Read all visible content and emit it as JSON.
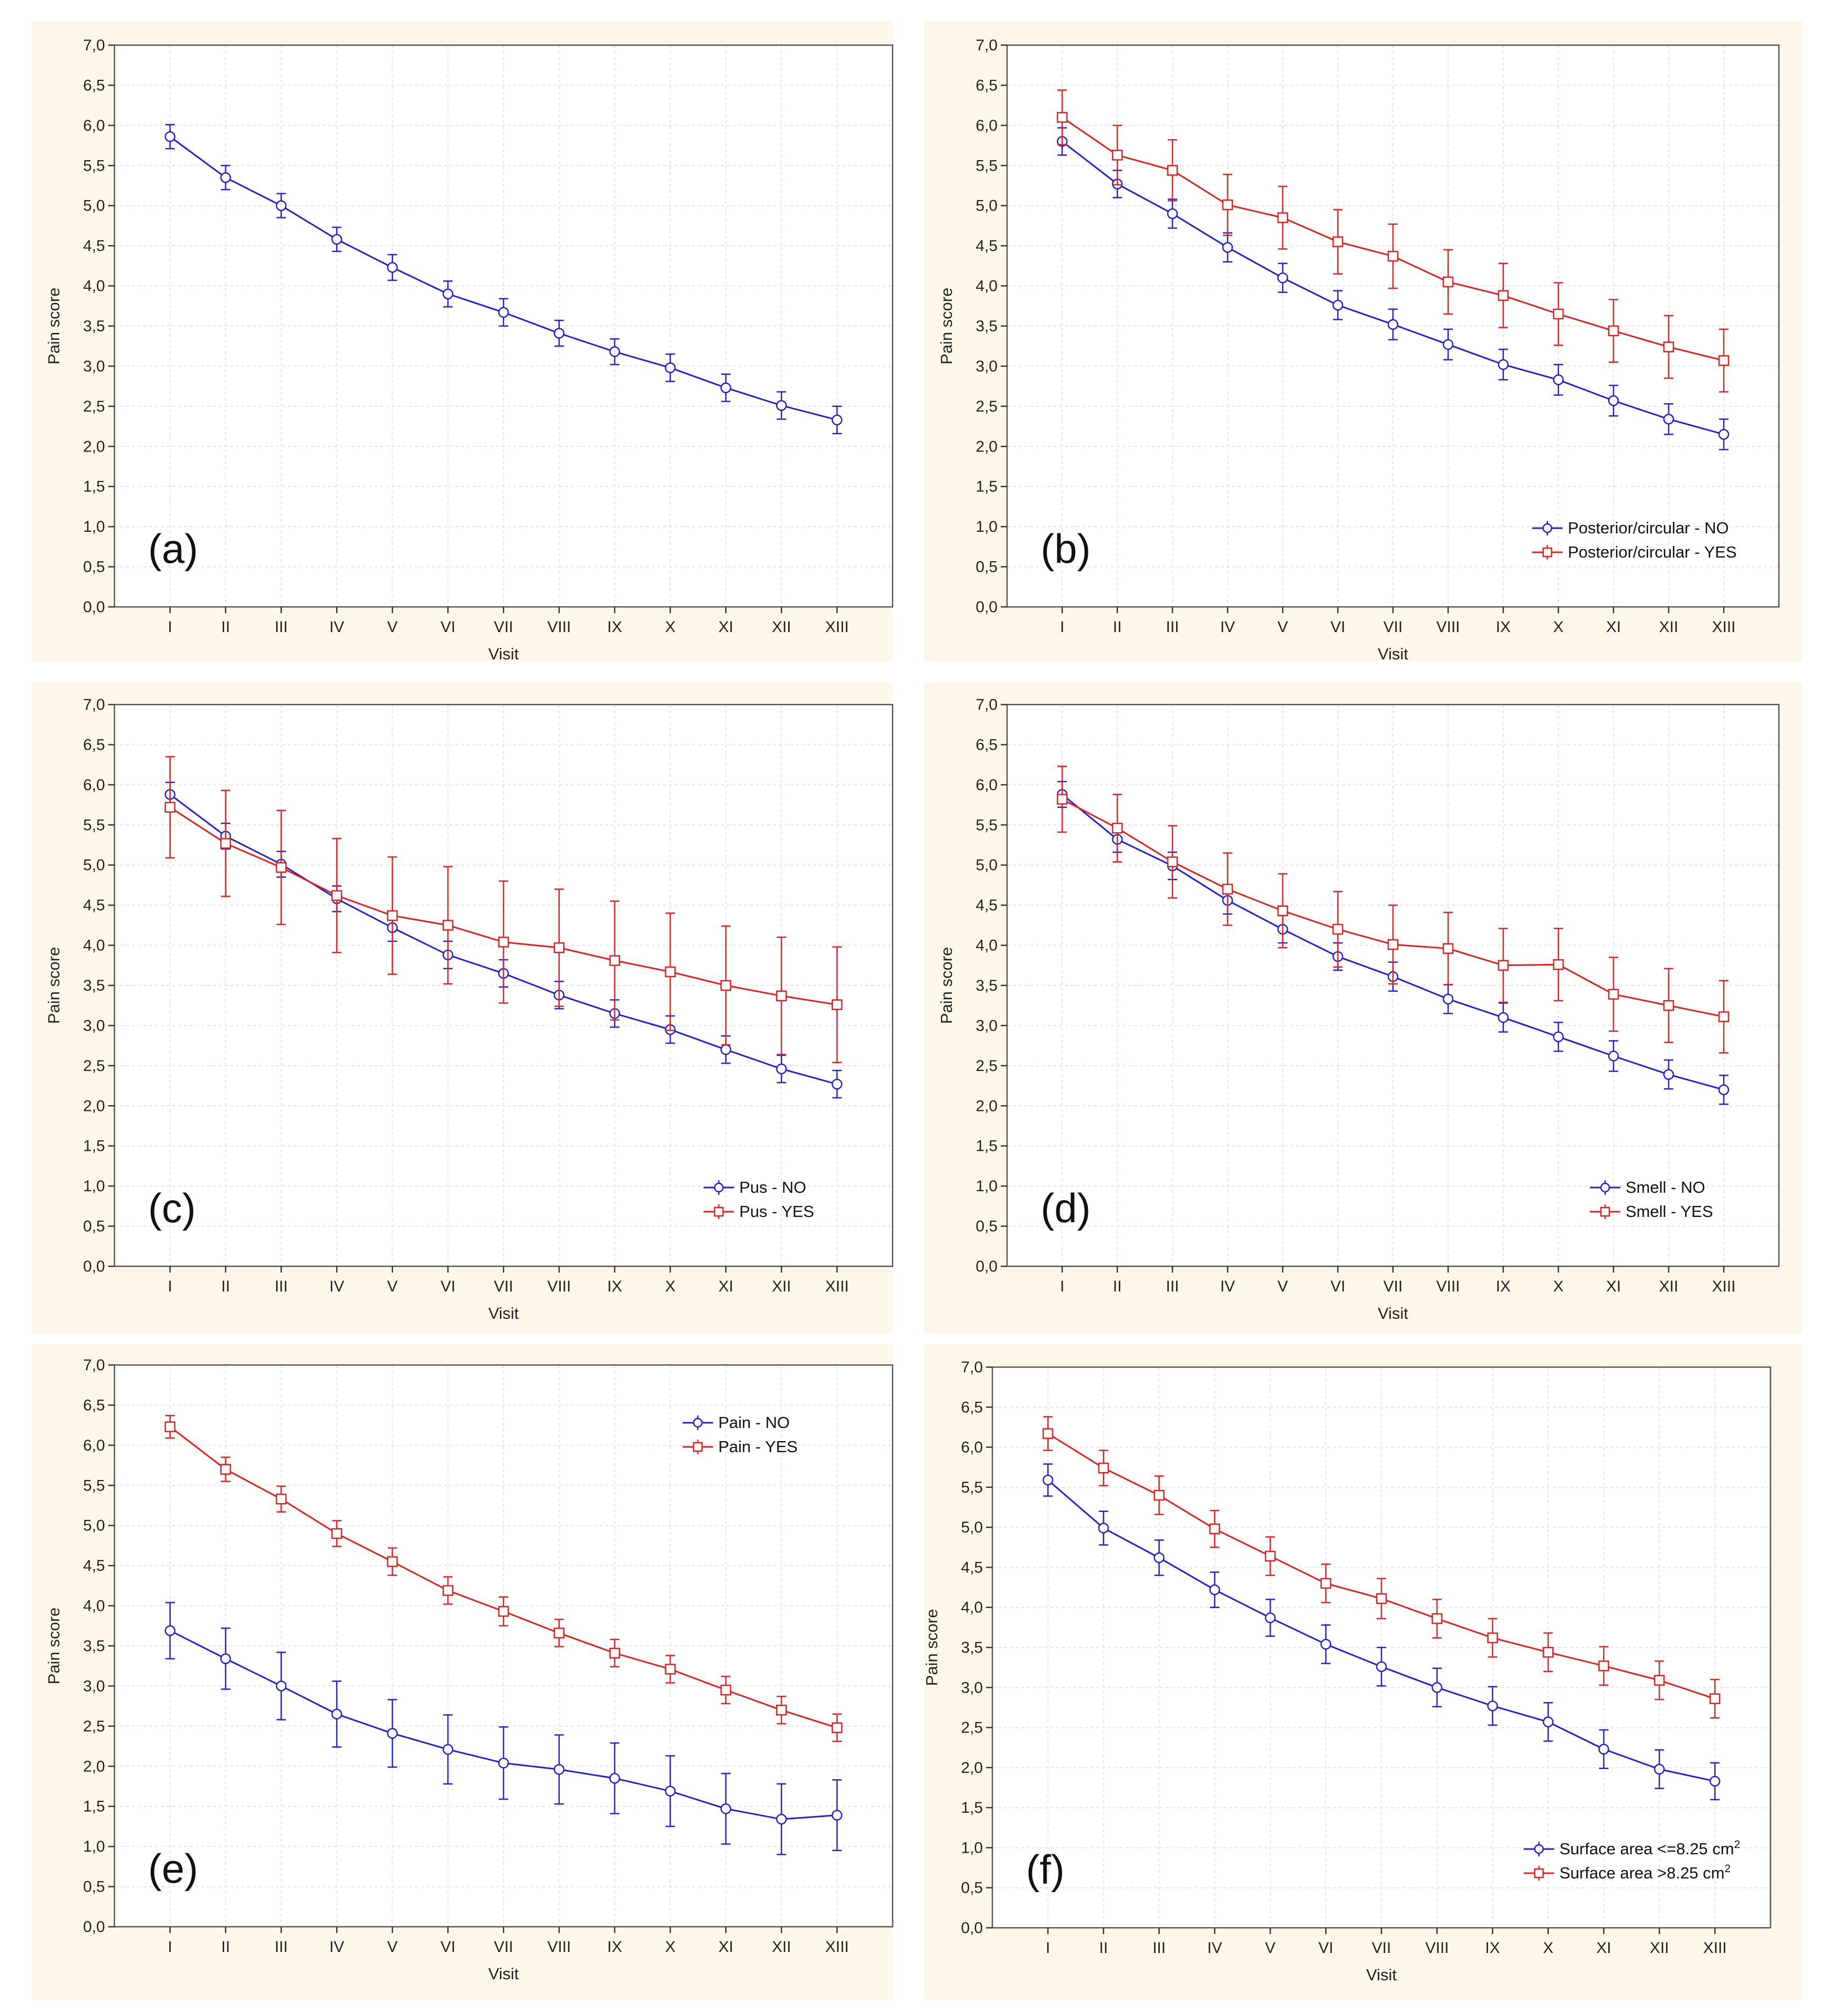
{
  "chart_data": [
    {
      "id": "a",
      "type": "line",
      "panel_label": "(a)",
      "xlabel": "Visit",
      "ylabel": "Pain score",
      "ylim": [
        0,
        7
      ],
      "ytick_labels": [
        "0,0",
        "0,5",
        "1,0",
        "1,5",
        "2,0",
        "2,5",
        "3,0",
        "3,5",
        "4,0",
        "4,5",
        "5,0",
        "5,5",
        "6,0",
        "6,5",
        "7,0"
      ],
      "categories": [
        "I",
        "II",
        "III",
        "IV",
        "V",
        "VI",
        "VII",
        "VIII",
        "IX",
        "X",
        "XI",
        "XII",
        "XIII"
      ],
      "legend_position": "none",
      "series": [
        {
          "name": "",
          "color": "#1f1fd6",
          "marker": "circle",
          "values": [
            5.86,
            5.35,
            5.0,
            4.58,
            4.23,
            3.9,
            3.67,
            3.41,
            3.18,
            2.98,
            2.73,
            2.51,
            2.33
          ],
          "errors": [
            0.15,
            0.15,
            0.15,
            0.15,
            0.16,
            0.16,
            0.17,
            0.16,
            0.16,
            0.17,
            0.17,
            0.17,
            0.17
          ]
        }
      ]
    },
    {
      "id": "b",
      "type": "line",
      "panel_label": "(b)",
      "xlabel": "Visit",
      "ylabel": "Pain score",
      "ylim": [
        0,
        7
      ],
      "ytick_labels": [
        "0,0",
        "0,5",
        "1,0",
        "1,5",
        "2,0",
        "2,5",
        "3,0",
        "3,5",
        "4,0",
        "4,5",
        "5,0",
        "5,5",
        "6,0",
        "6,5",
        "7,0"
      ],
      "categories": [
        "I",
        "II",
        "III",
        "IV",
        "V",
        "VI",
        "VII",
        "VIII",
        "IX",
        "X",
        "XI",
        "XII",
        "XIII"
      ],
      "legend_position": "bottom-right",
      "series": [
        {
          "name": "Posterior/circular - NO",
          "color": "#1f1fd6",
          "marker": "circle",
          "values": [
            5.8,
            5.27,
            4.9,
            4.48,
            4.1,
            3.76,
            3.52,
            3.27,
            3.02,
            2.83,
            2.57,
            2.34,
            2.15
          ],
          "errors": [
            0.17,
            0.17,
            0.18,
            0.18,
            0.18,
            0.18,
            0.19,
            0.19,
            0.19,
            0.19,
            0.19,
            0.19,
            0.19
          ]
        },
        {
          "name": "Posterior/circular - YES",
          "color": "#e0201e",
          "marker": "square",
          "values": [
            6.1,
            5.63,
            5.44,
            5.01,
            4.85,
            4.55,
            4.37,
            4.05,
            3.88,
            3.65,
            3.44,
            3.24,
            3.07
          ],
          "errors": [
            0.34,
            0.37,
            0.38,
            0.38,
            0.39,
            0.4,
            0.4,
            0.4,
            0.4,
            0.39,
            0.39,
            0.39,
            0.39
          ]
        }
      ]
    },
    {
      "id": "c",
      "type": "line",
      "panel_label": "(c)",
      "xlabel": "Visit",
      "ylabel": "Pain score",
      "ylim": [
        0,
        7
      ],
      "ytick_labels": [
        "0,0",
        "0,5",
        "1,0",
        "1,5",
        "2,0",
        "2,5",
        "3,0",
        "3,5",
        "4,0",
        "4,5",
        "5,0",
        "5,5",
        "6,0",
        "6,5",
        "7,0"
      ],
      "categories": [
        "I",
        "II",
        "III",
        "IV",
        "V",
        "VI",
        "VII",
        "VIII",
        "IX",
        "X",
        "XI",
        "XII",
        "XIII"
      ],
      "legend_position": "bottom-right",
      "series": [
        {
          "name": "Pus - NO",
          "color": "#1f1fd6",
          "marker": "circle",
          "values": [
            5.88,
            5.36,
            5.01,
            4.58,
            4.22,
            3.88,
            3.65,
            3.38,
            3.15,
            2.95,
            2.7,
            2.46,
            2.27
          ],
          "errors": [
            0.15,
            0.16,
            0.16,
            0.16,
            0.17,
            0.17,
            0.17,
            0.17,
            0.17,
            0.17,
            0.17,
            0.17,
            0.17
          ]
        },
        {
          "name": "Pus - YES",
          "color": "#e0201e",
          "marker": "square",
          "values": [
            5.72,
            5.27,
            4.97,
            4.62,
            4.37,
            4.25,
            4.04,
            3.97,
            3.81,
            3.67,
            3.5,
            3.37,
            3.26
          ],
          "errors": [
            0.63,
            0.66,
            0.71,
            0.71,
            0.73,
            0.73,
            0.76,
            0.73,
            0.74,
            0.73,
            0.74,
            0.73,
            0.72
          ]
        }
      ]
    },
    {
      "id": "d",
      "type": "line",
      "panel_label": "(d)",
      "xlabel": "Visit",
      "ylabel": "Pain score",
      "ylim": [
        0,
        7
      ],
      "ytick_labels": [
        "0,0",
        "0,5",
        "1,0",
        "1,5",
        "2,0",
        "2,5",
        "3,0",
        "3,5",
        "4,0",
        "4,5",
        "5,0",
        "5,5",
        "6,0",
        "6,5",
        "7,0"
      ],
      "categories": [
        "I",
        "II",
        "III",
        "IV",
        "V",
        "VI",
        "VII",
        "VIII",
        "IX",
        "X",
        "XI",
        "XII",
        "XIII"
      ],
      "legend_position": "bottom-right",
      "series": [
        {
          "name": "Smell - NO",
          "color": "#1f1fd6",
          "marker": "circle",
          "values": [
            5.88,
            5.32,
            4.99,
            4.56,
            4.2,
            3.86,
            3.61,
            3.33,
            3.1,
            2.86,
            2.62,
            2.39,
            2.2
          ],
          "errors": [
            0.16,
            0.16,
            0.17,
            0.17,
            0.17,
            0.17,
            0.18,
            0.18,
            0.18,
            0.18,
            0.19,
            0.18,
            0.18
          ]
        },
        {
          "name": "Smell - YES",
          "color": "#e0201e",
          "marker": "square",
          "values": [
            5.82,
            5.46,
            5.04,
            4.7,
            4.43,
            4.2,
            4.01,
            3.96,
            3.75,
            3.76,
            3.39,
            3.25,
            3.11
          ],
          "errors": [
            0.41,
            0.42,
            0.45,
            0.45,
            0.46,
            0.47,
            0.49,
            0.45,
            0.46,
            0.45,
            0.46,
            0.46,
            0.45
          ]
        }
      ]
    },
    {
      "id": "e",
      "type": "line",
      "panel_label": "(e)",
      "xlabel": "Visit",
      "ylabel": "Pain score",
      "ylim": [
        0,
        7
      ],
      "ytick_labels": [
        "0,0",
        "0,5",
        "1,0",
        "1,5",
        "2,0",
        "2,5",
        "3,0",
        "3,5",
        "4,0",
        "4,5",
        "5,0",
        "5,5",
        "6,0",
        "6,5",
        "7,0"
      ],
      "categories": [
        "I",
        "II",
        "III",
        "IV",
        "V",
        "VI",
        "VII",
        "VIII",
        "IX",
        "X",
        "XI",
        "XII",
        "XIII"
      ],
      "legend_position": "top-right",
      "series": [
        {
          "name": "Pain - NO",
          "color": "#1f1fd6",
          "marker": "circle",
          "values": [
            3.69,
            3.34,
            3.0,
            2.65,
            2.41,
            2.21,
            2.04,
            1.96,
            1.85,
            1.69,
            1.47,
            1.34,
            1.39
          ],
          "errors": [
            0.35,
            0.38,
            0.42,
            0.41,
            0.42,
            0.43,
            0.45,
            0.43,
            0.44,
            0.44,
            0.44,
            0.44,
            0.44
          ]
        },
        {
          "name": "Pain - YES",
          "color": "#e0201e",
          "marker": "square",
          "values": [
            6.23,
            5.7,
            5.33,
            4.9,
            4.55,
            4.19,
            3.93,
            3.66,
            3.41,
            3.21,
            2.95,
            2.7,
            2.48
          ],
          "errors": [
            0.14,
            0.15,
            0.16,
            0.16,
            0.17,
            0.17,
            0.18,
            0.17,
            0.17,
            0.17,
            0.17,
            0.17,
            0.17
          ]
        }
      ]
    },
    {
      "id": "f",
      "type": "line",
      "panel_label": "(f)",
      "xlabel": "Visit",
      "ylabel": "Pain score",
      "ylim": [
        0,
        7
      ],
      "ytick_labels": [
        "0,0",
        "0,5",
        "1,0",
        "1,5",
        "2,0",
        "2,5",
        "3,0",
        "3,5",
        "4,0",
        "4,5",
        "5,0",
        "5,5",
        "6,0",
        "6,5",
        "7,0"
      ],
      "categories": [
        "I",
        "II",
        "III",
        "IV",
        "V",
        "VI",
        "VII",
        "VIII",
        "IX",
        "X",
        "XI",
        "XII",
        "XIII"
      ],
      "legend_position": "bottom-right",
      "series": [
        {
          "name": "Surface area <=8.25 cm",
          "superscript": "2",
          "color": "#1f1fd6",
          "marker": "circle",
          "values": [
            5.59,
            4.99,
            4.62,
            4.22,
            3.87,
            3.54,
            3.26,
            3.0,
            2.77,
            2.57,
            2.23,
            1.98,
            1.83
          ],
          "errors": [
            0.2,
            0.21,
            0.22,
            0.22,
            0.23,
            0.24,
            0.24,
            0.24,
            0.24,
            0.24,
            0.24,
            0.24,
            0.23
          ]
        },
        {
          "name": "Surface area >8.25 cm",
          "superscript": "2",
          "color": "#e0201e",
          "marker": "square",
          "values": [
            6.17,
            5.74,
            5.4,
            4.98,
            4.64,
            4.3,
            4.11,
            3.86,
            3.62,
            3.44,
            3.27,
            3.09,
            2.86
          ],
          "errors": [
            0.21,
            0.22,
            0.24,
            0.23,
            0.24,
            0.24,
            0.25,
            0.24,
            0.24,
            0.24,
            0.24,
            0.24,
            0.24
          ]
        }
      ]
    }
  ]
}
